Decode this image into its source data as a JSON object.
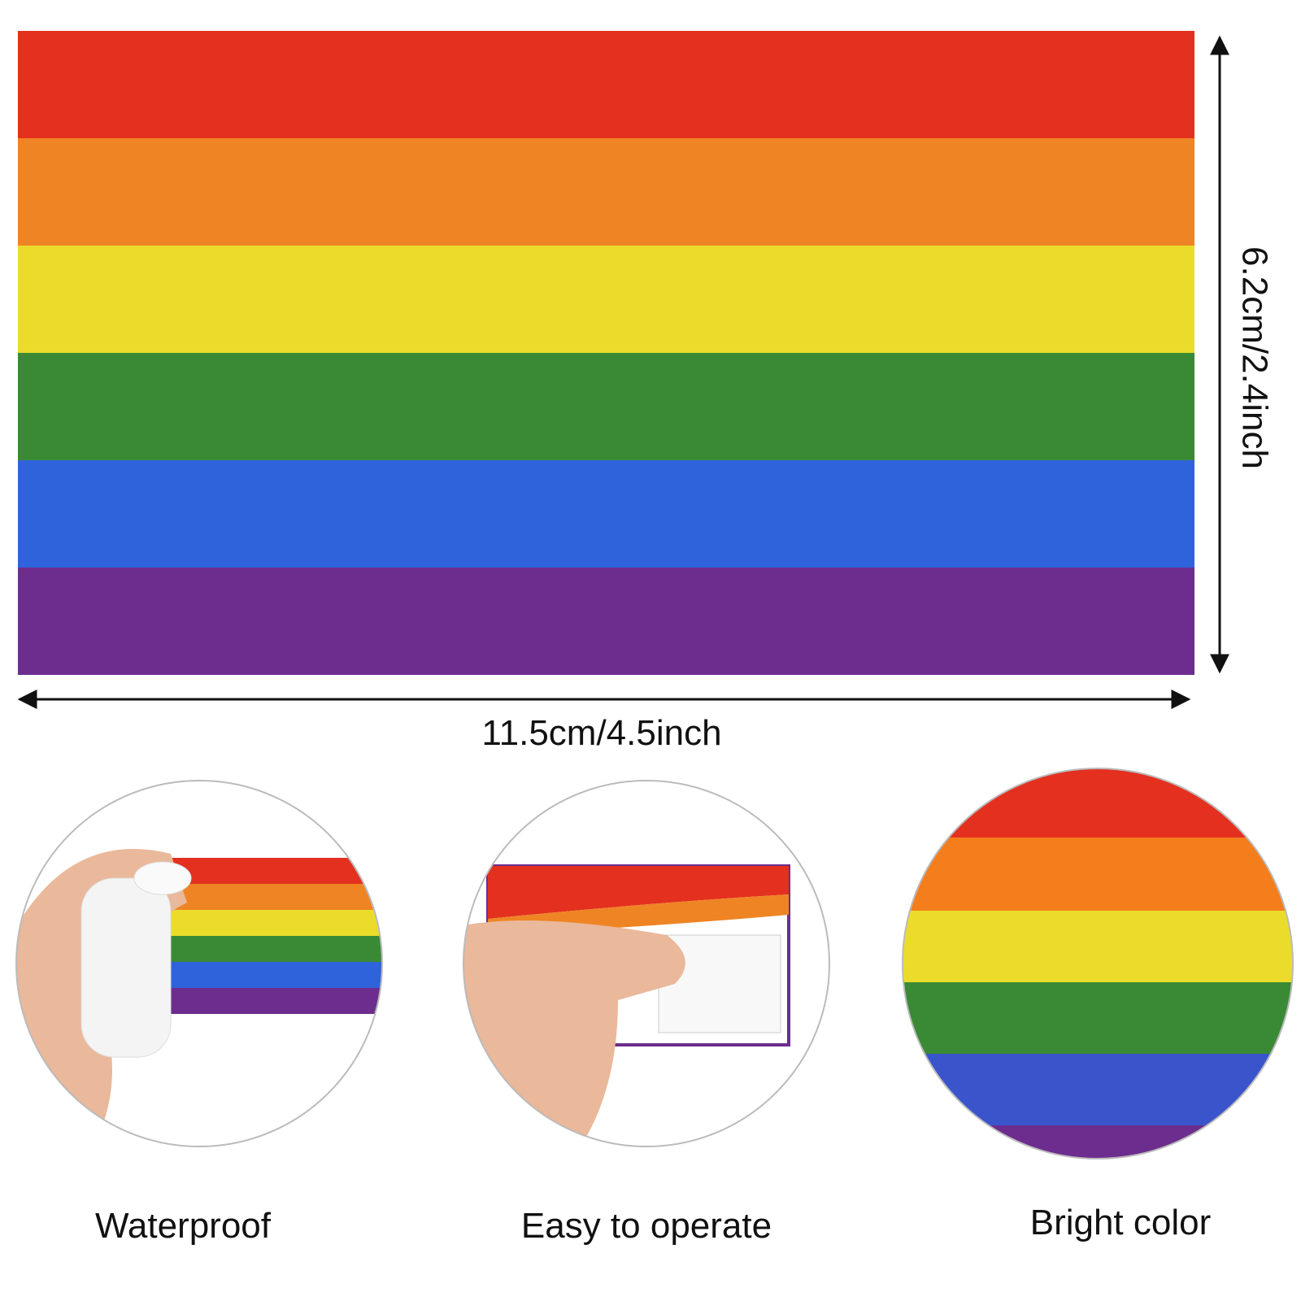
{
  "dimensions": {
    "width": "11.5cm/4.5inch",
    "height": "6.2cm/2.4inch"
  },
  "features": [
    {
      "label": "Waterproof"
    },
    {
      "label": "Easy to operate"
    },
    {
      "label": "Bright color"
    }
  ]
}
